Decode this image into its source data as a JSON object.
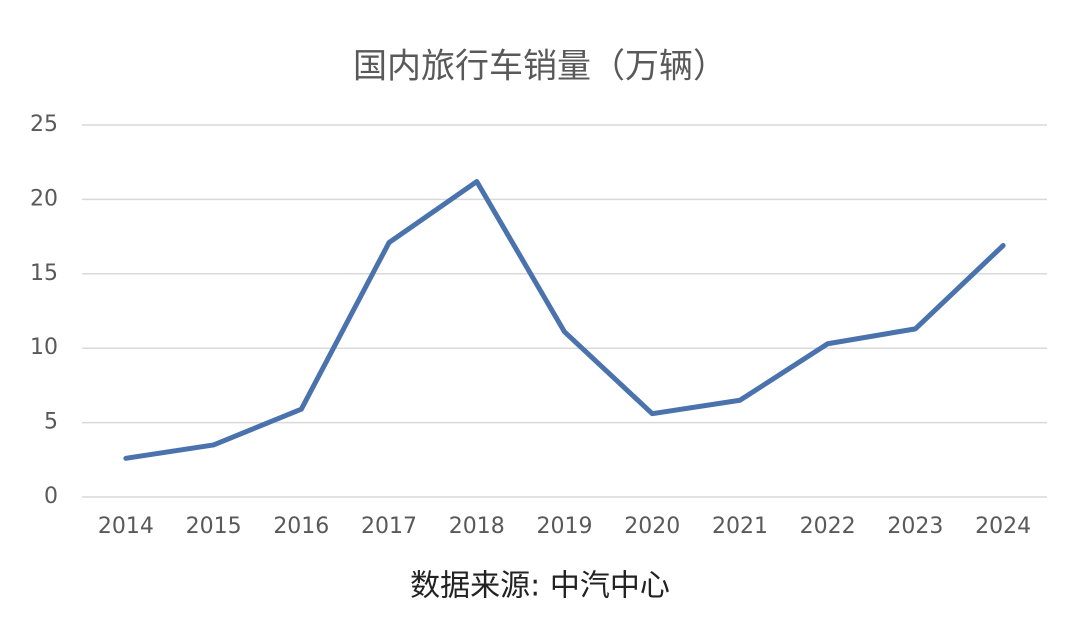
{
  "chart_data": {
    "type": "line",
    "title": "国内旅行车销量（万辆）",
    "source": "数据来源: 中汽中心",
    "categories": [
      "2014",
      "2015",
      "2016",
      "2017",
      "2018",
      "2019",
      "2020",
      "2021",
      "2022",
      "2023",
      "2024"
    ],
    "values": [
      2.6,
      3.5,
      5.9,
      17.1,
      21.2,
      11.1,
      5.6,
      6.5,
      10.3,
      11.3,
      16.9
    ],
    "color": "#4a72ad",
    "ylim": [
      0,
      25
    ],
    "yticks": [
      0,
      5,
      10,
      15,
      20,
      25
    ],
    "grid": true
  }
}
